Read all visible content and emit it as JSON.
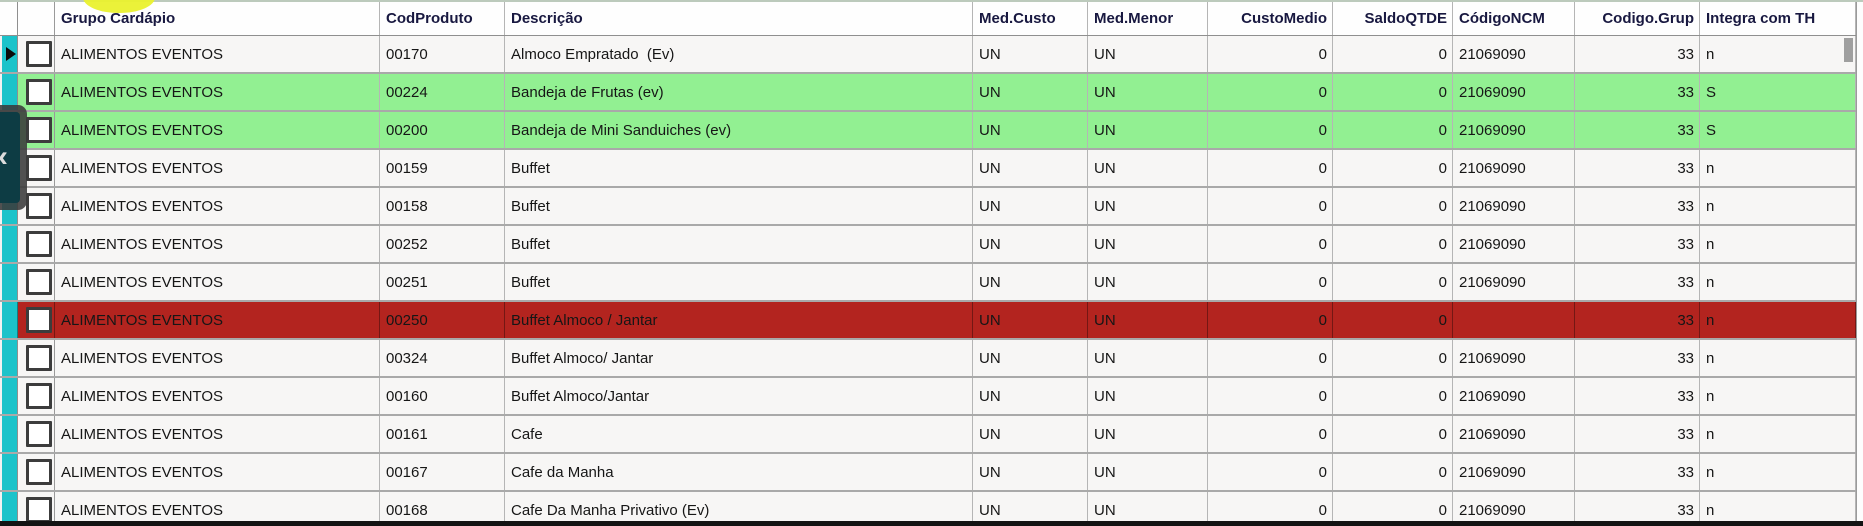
{
  "table": {
    "columns": [
      {
        "key": "grupo",
        "label": "Grupo Cardápio",
        "align": "left"
      },
      {
        "key": "cod",
        "label": "CodProduto",
        "align": "left"
      },
      {
        "key": "desc",
        "label": "Descrição",
        "align": "left"
      },
      {
        "key": "med_custo",
        "label": "Med.Custo",
        "align": "left"
      },
      {
        "key": "med_menor",
        "label": "Med.Menor",
        "align": "left"
      },
      {
        "key": "custo_medio",
        "label": "CustoMedio",
        "align": "right"
      },
      {
        "key": "saldo_qtde",
        "label": "SaldoQTDE",
        "align": "right"
      },
      {
        "key": "codigo_ncm",
        "label": "CódigoNCM",
        "align": "left"
      },
      {
        "key": "codigo_grup",
        "label": "Codigo.Grup",
        "align": "right"
      },
      {
        "key": "integra",
        "label": "Integra com TH",
        "align": "left"
      }
    ],
    "rows": [
      {
        "grupo": "ALIMENTOS EVENTOS",
        "cod": "00170",
        "desc": "Almoco Empratado  (Ev)",
        "med_custo": "UN",
        "med_menor": "UN",
        "custo_medio": "0",
        "saldo_qtde": "0",
        "codigo_ncm": "21069090",
        "codigo_grup": "33",
        "integra": "n",
        "highlight": "none",
        "current": true
      },
      {
        "grupo": "ALIMENTOS EVENTOS",
        "cod": "00224",
        "desc": "Bandeja de Frutas (ev)",
        "med_custo": "UN",
        "med_menor": "UN",
        "custo_medio": "0",
        "saldo_qtde": "0",
        "codigo_ncm": "21069090",
        "codigo_grup": "33",
        "integra": "S",
        "highlight": "green",
        "current": false
      },
      {
        "grupo": "ALIMENTOS EVENTOS",
        "cod": "00200",
        "desc": "Bandeja de Mini Sanduiches (ev)",
        "med_custo": "UN",
        "med_menor": "UN",
        "custo_medio": "0",
        "saldo_qtde": "0",
        "codigo_ncm": "21069090",
        "codigo_grup": "33",
        "integra": "S",
        "highlight": "green",
        "current": false
      },
      {
        "grupo": "ALIMENTOS EVENTOS",
        "cod": "00159",
        "desc": "Buffet",
        "med_custo": "UN",
        "med_menor": "UN",
        "custo_medio": "0",
        "saldo_qtde": "0",
        "codigo_ncm": "21069090",
        "codigo_grup": "33",
        "integra": "n",
        "highlight": "none",
        "current": false
      },
      {
        "grupo": "ALIMENTOS EVENTOS",
        "cod": "00158",
        "desc": "Buffet",
        "med_custo": "UN",
        "med_menor": "UN",
        "custo_medio": "0",
        "saldo_qtde": "0",
        "codigo_ncm": "21069090",
        "codigo_grup": "33",
        "integra": "n",
        "highlight": "none",
        "current": false
      },
      {
        "grupo": "ALIMENTOS EVENTOS",
        "cod": "00252",
        "desc": "Buffet",
        "med_custo": "UN",
        "med_menor": "UN",
        "custo_medio": "0",
        "saldo_qtde": "0",
        "codigo_ncm": "21069090",
        "codigo_grup": "33",
        "integra": "n",
        "highlight": "none",
        "current": false
      },
      {
        "grupo": "ALIMENTOS EVENTOS",
        "cod": "00251",
        "desc": "Buffet",
        "med_custo": "UN",
        "med_menor": "UN",
        "custo_medio": "0",
        "saldo_qtde": "0",
        "codigo_ncm": "21069090",
        "codigo_grup": "33",
        "integra": "n",
        "highlight": "none",
        "current": false
      },
      {
        "grupo": "ALIMENTOS EVENTOS",
        "cod": "00250",
        "desc": "Buffet Almoco / Jantar",
        "med_custo": "UN",
        "med_menor": "UN",
        "custo_medio": "0",
        "saldo_qtde": "0",
        "codigo_ncm": "",
        "codigo_grup": "33",
        "integra": "n",
        "highlight": "red",
        "current": false
      },
      {
        "grupo": "ALIMENTOS EVENTOS",
        "cod": "00324",
        "desc": "Buffet Almoco/ Jantar",
        "med_custo": "UN",
        "med_menor": "UN",
        "custo_medio": "0",
        "saldo_qtde": "0",
        "codigo_ncm": "21069090",
        "codigo_grup": "33",
        "integra": "n",
        "highlight": "none",
        "current": false
      },
      {
        "grupo": "ALIMENTOS EVENTOS",
        "cod": "00160",
        "desc": "Buffet Almoco/Jantar",
        "med_custo": "UN",
        "med_menor": "UN",
        "custo_medio": "0",
        "saldo_qtde": "0",
        "codigo_ncm": "21069090",
        "codigo_grup": "33",
        "integra": "n",
        "highlight": "none",
        "current": false
      },
      {
        "grupo": "ALIMENTOS EVENTOS",
        "cod": "00161",
        "desc": "Cafe",
        "med_custo": "UN",
        "med_menor": "UN",
        "custo_medio": "0",
        "saldo_qtde": "0",
        "codigo_ncm": "21069090",
        "codigo_grup": "33",
        "integra": "n",
        "highlight": "none",
        "current": false
      },
      {
        "grupo": "ALIMENTOS EVENTOS",
        "cod": "00167",
        "desc": "Cafe da Manha",
        "med_custo": "UN",
        "med_menor": "UN",
        "custo_medio": "0",
        "saldo_qtde": "0",
        "codigo_ncm": "21069090",
        "codigo_grup": "33",
        "integra": "n",
        "highlight": "none",
        "current": false
      },
      {
        "grupo": "ALIMENTOS EVENTOS",
        "cod": "00168",
        "desc": "Cafe Da Manha Privativo (Ev)",
        "med_custo": "UN",
        "med_menor": "UN",
        "custo_medio": "0",
        "saldo_qtde": "0",
        "codigo_ncm": "21069090",
        "codigo_grup": "33",
        "integra": "n",
        "highlight": "none",
        "current": false
      }
    ]
  },
  "drawer": {
    "chevron": "‹"
  },
  "colors": {
    "accent_cyan": "#1bc3ca",
    "row_green": "#92f092",
    "row_red": "#b3241f",
    "highlight_yellow": "#eaf12e",
    "grid_line": "#b5b5b5",
    "row_line": "#a9a9a9",
    "header_text": "#181840",
    "body_text": "#161616",
    "overlay_teal": "#0d3c44",
    "scrollbar_thumb": "#9f9f9f",
    "top_edge": "#bccabc"
  }
}
